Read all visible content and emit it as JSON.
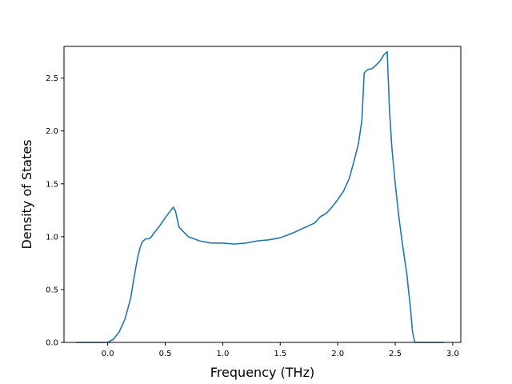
{
  "chart_data": {
    "type": "line",
    "title": "",
    "xlabel": "Frequency (THz)",
    "ylabel": "Density of States",
    "xlim": [
      -0.38,
      3.07
    ],
    "ylim": [
      0.0,
      2.8
    ],
    "xticks": [
      0.0,
      0.5,
      1.0,
      1.5,
      2.0,
      2.5,
      3.0
    ],
    "xtick_labels": [
      "0.0",
      "0.5",
      "1.0",
      "1.5",
      "2.0",
      "2.5",
      "3.0"
    ],
    "yticks": [
      0.0,
      0.5,
      1.0,
      1.5,
      2.0,
      2.5
    ],
    "ytick_labels": [
      "0.0",
      "0.5",
      "1.0",
      "1.5",
      "2.0",
      "2.5"
    ],
    "grid": false,
    "legend": "none",
    "series": [
      {
        "color": "#1f77b4",
        "x": [
          -0.27,
          0.0,
          0.05,
          0.1,
          0.15,
          0.2,
          0.23,
          0.26,
          0.28,
          0.3,
          0.33,
          0.36,
          0.38,
          0.4,
          0.45,
          0.5,
          0.55,
          0.57,
          0.59,
          0.62,
          0.7,
          0.8,
          0.9,
          1.0,
          1.1,
          1.2,
          1.3,
          1.4,
          1.5,
          1.6,
          1.7,
          1.8,
          1.85,
          1.9,
          1.95,
          2.0,
          2.05,
          2.1,
          2.15,
          2.18,
          2.21,
          2.23,
          2.26,
          2.3,
          2.35,
          2.38,
          2.4,
          2.43,
          2.45,
          2.47,
          2.5,
          2.53,
          2.56,
          2.6,
          2.63,
          2.65,
          2.67,
          2.92
        ],
        "y": [
          0.0,
          0.0,
          0.03,
          0.1,
          0.22,
          0.42,
          0.62,
          0.8,
          0.89,
          0.95,
          0.98,
          0.98,
          1.0,
          1.03,
          1.1,
          1.18,
          1.25,
          1.28,
          1.24,
          1.09,
          1.0,
          0.96,
          0.94,
          0.94,
          0.93,
          0.94,
          0.96,
          0.97,
          0.99,
          1.03,
          1.08,
          1.13,
          1.19,
          1.22,
          1.28,
          1.35,
          1.43,
          1.55,
          1.75,
          1.88,
          2.1,
          2.55,
          2.58,
          2.59,
          2.64,
          2.68,
          2.72,
          2.75,
          2.2,
          1.85,
          1.5,
          1.2,
          0.95,
          0.65,
          0.35,
          0.1,
          0.0,
          0.0
        ]
      }
    ]
  }
}
